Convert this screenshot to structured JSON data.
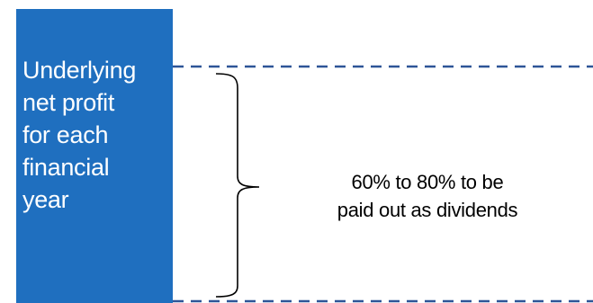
{
  "profit_box": {
    "label": "Underlying\nnet profit\nfor each\nfinancial\nyear",
    "color": "#1f6fbf"
  },
  "payout": {
    "label": "60% to 80% to be\npaid out as dividends"
  },
  "lines": {
    "dash_color": "#2e5597"
  }
}
